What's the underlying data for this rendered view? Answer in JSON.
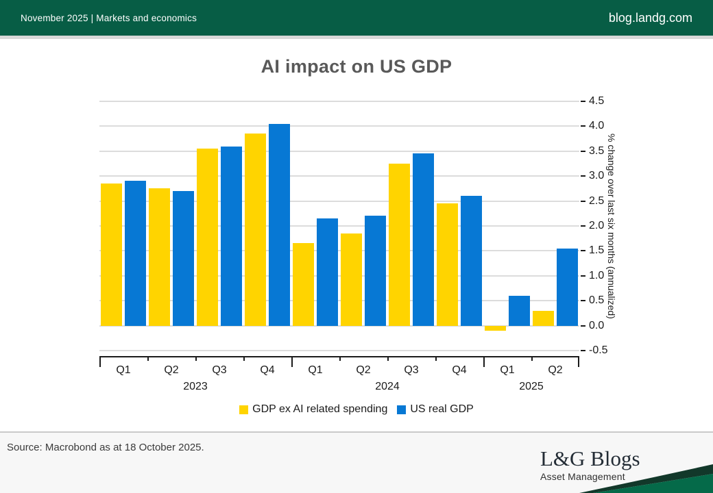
{
  "header": {
    "left": "November 2025 | Markets and economics",
    "right": "blog.landg.com"
  },
  "chart_data": {
    "type": "bar",
    "title": "AI impact on US GDP",
    "ylabel": "% change over last six months (annualized)",
    "ylim": [
      -0.5,
      4.5
    ],
    "grid": true,
    "legend_position": "bottom",
    "yticks": [
      "4.5",
      "4.0",
      "3.5",
      "3.0",
      "2.5",
      "2.0",
      "1.5",
      "1.0",
      "0.5",
      "0.0",
      "-0.5"
    ],
    "categories": [
      "Q1",
      "Q2",
      "Q3",
      "Q4",
      "Q1",
      "Q2",
      "Q3",
      "Q4",
      "Q1",
      "Q2"
    ],
    "year_groups": [
      {
        "label": "2023",
        "quarters": 4
      },
      {
        "label": "2024",
        "quarters": 4
      },
      {
        "label": "2025",
        "quarters": 2
      }
    ],
    "series": [
      {
        "name": "GDP ex AI related spending",
        "color": "#FFD400",
        "values": [
          2.85,
          2.75,
          3.55,
          3.85,
          1.65,
          1.85,
          3.25,
          2.45,
          -0.1,
          0.3
        ]
      },
      {
        "name": "US real GDP",
        "color": "#0778D4",
        "values": [
          2.9,
          2.7,
          3.6,
          4.05,
          2.15,
          2.2,
          3.45,
          2.6,
          0.6,
          1.55
        ]
      }
    ]
  },
  "footer": {
    "source": "Source: Macrobond as at 18 October 2025."
  },
  "logo": {
    "title": "L&G Blogs",
    "subtitle": "Asset Management"
  },
  "colors": {
    "header_green": "#075d45",
    "swoosh_green": "#056a49",
    "swoosh_dark": "#12382a",
    "gridline": "#dcdcdc",
    "title_gray": "#595959"
  }
}
